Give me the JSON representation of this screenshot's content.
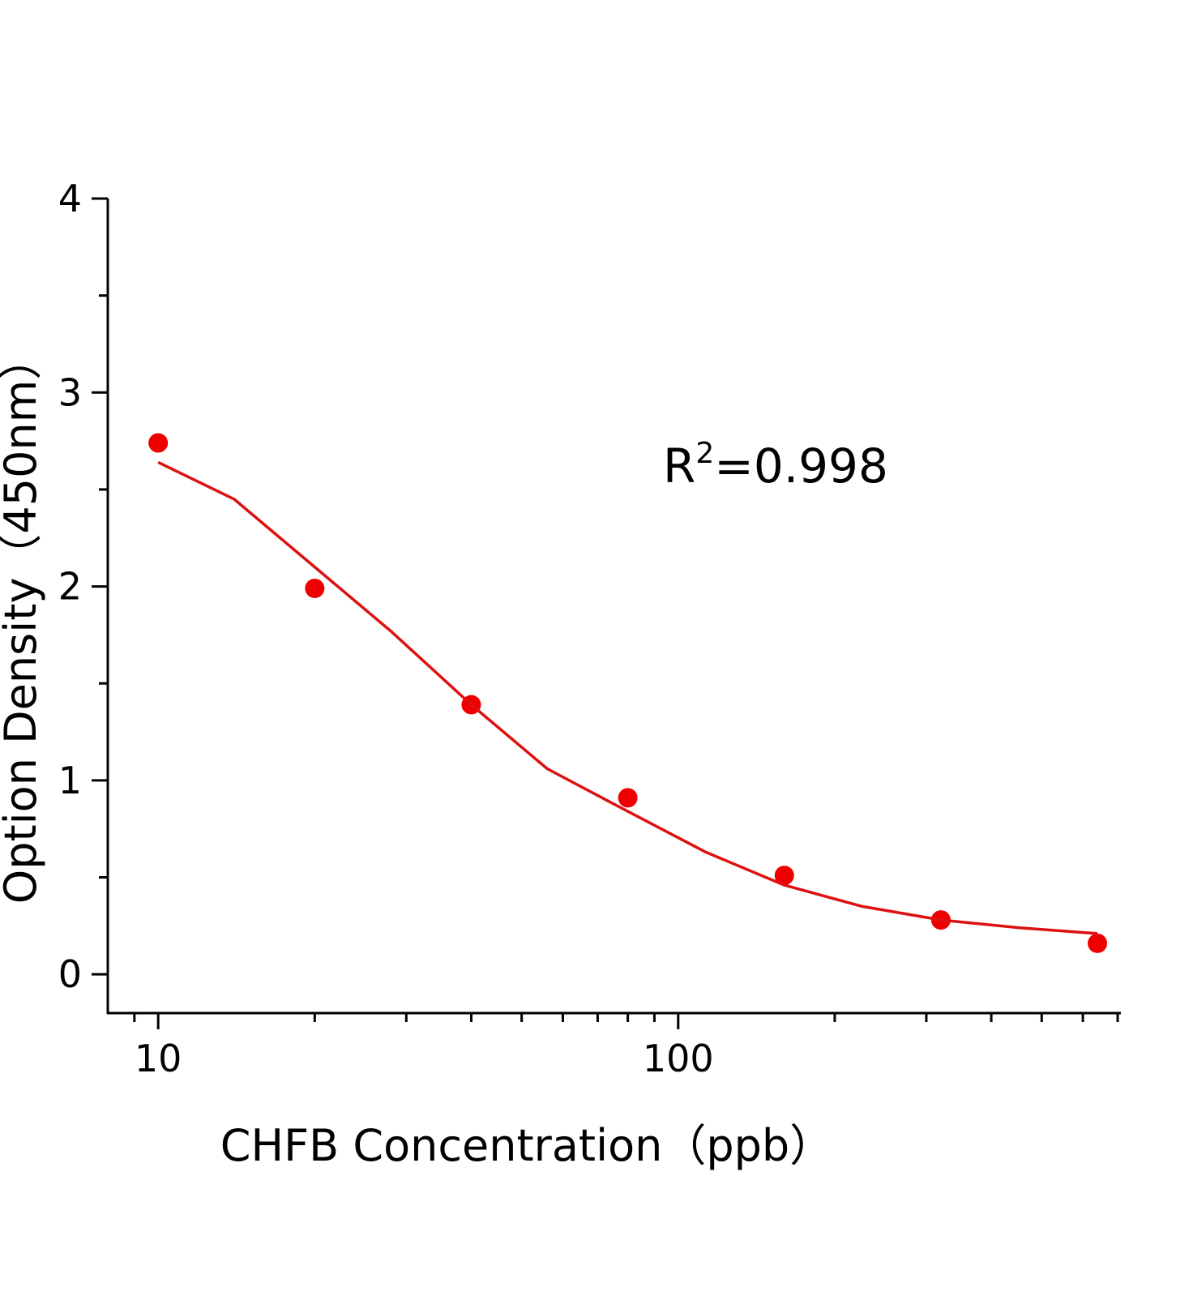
{
  "chart_data": {
    "type": "scatter",
    "x_label": "CHFB Concentration（ppb）",
    "y_label": "Option Density（450nm）",
    "annotation": {
      "base": "R",
      "superscript": "2",
      "rest": "=0.998"
    },
    "x_log": true,
    "xlim": [
      8,
      710
    ],
    "xticks": [
      10,
      100
    ],
    "x_minor_ticks": [
      9,
      20,
      30,
      40,
      50,
      60,
      70,
      80,
      90,
      200,
      300,
      400,
      500,
      600,
      700
    ],
    "ylim": [
      -0.2,
      4
    ],
    "yticks": [
      0,
      1,
      2,
      3,
      4
    ],
    "y_minor_ticks": [
      0.5,
      1.5,
      2.5,
      3.5
    ],
    "series": [
      {
        "kind": "points",
        "color": "#ee0000",
        "x": [
          10,
          20,
          40,
          80,
          160,
          320,
          640
        ],
        "values": [
          2.74,
          1.99,
          1.39,
          0.91,
          0.51,
          0.28,
          0.16
        ]
      },
      {
        "kind": "fit",
        "color": "#dd1111",
        "x": [
          10,
          14,
          20,
          28,
          40,
          56,
          80,
          113,
          160,
          226,
          320,
          453,
          640
        ],
        "values": [
          2.64,
          2.45,
          2.1,
          1.77,
          1.39,
          1.06,
          0.84,
          0.63,
          0.46,
          0.35,
          0.28,
          0.24,
          0.21
        ]
      }
    ]
  }
}
